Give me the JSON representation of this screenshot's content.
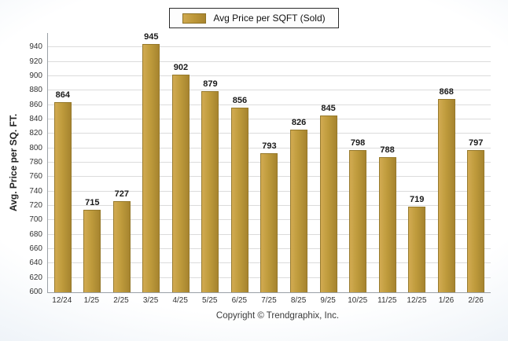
{
  "chart_data": {
    "type": "bar",
    "title": "Avg Price per SQFT (Sold)",
    "legend": "Avg Price per SQFT (Sold)",
    "legend_position": "top",
    "categories": [
      "12/24",
      "1/25",
      "2/25",
      "3/25",
      "4/25",
      "5/25",
      "6/25",
      "7/25",
      "8/25",
      "9/25",
      "10/25",
      "11/25",
      "12/25",
      "1/26",
      "2/26"
    ],
    "values": [
      864,
      715,
      727,
      945,
      902,
      879,
      856,
      793,
      826,
      845,
      798,
      788,
      719,
      868,
      797
    ],
    "xlabel": "",
    "ylabel": "Avg. Price per SQ. FT.",
    "ylim": [
      600,
      940
    ],
    "ytick_step": 20,
    "grid": true,
    "bar_color": "#bf9b3c",
    "footer": "Copyright © Trendgraphix, Inc."
  }
}
